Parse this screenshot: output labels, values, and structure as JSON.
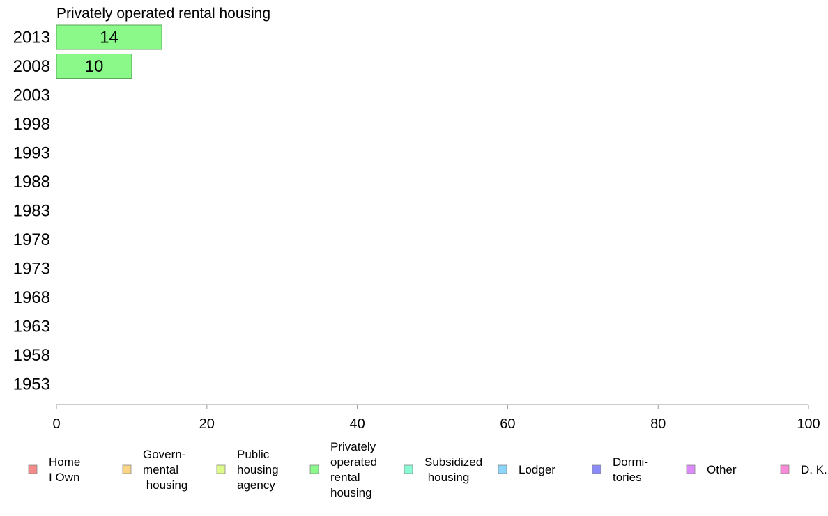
{
  "chart_data": {
    "type": "bar",
    "orientation": "horizontal",
    "stacked": true,
    "title": "Privately operated rental housing",
    "categories": [
      "2013",
      "2008",
      "2003",
      "1998",
      "1993",
      "1988",
      "1983",
      "1978",
      "1973",
      "1968",
      "1963",
      "1958",
      "1953"
    ],
    "series": [
      {
        "name": "Home\nI Own",
        "color": "#f58a8a",
        "values": [
          null,
          null,
          null,
          null,
          null,
          null,
          null,
          null,
          null,
          null,
          null,
          null,
          null
        ]
      },
      {
        "name": "Govern-\nmental\n housing",
        "color": "#f9d585",
        "values": [
          null,
          null,
          null,
          null,
          null,
          null,
          null,
          null,
          null,
          null,
          null,
          null,
          null
        ]
      },
      {
        "name": "Public\nhousing\nagency",
        "color": "#dcf98a",
        "values": [
          null,
          null,
          null,
          null,
          null,
          null,
          null,
          null,
          null,
          null,
          null,
          null,
          null
        ]
      },
      {
        "name": "Privately\noperated\nrental\nhousing",
        "color": "#8af98a",
        "values": [
          14,
          10,
          null,
          null,
          null,
          null,
          null,
          null,
          null,
          null,
          null,
          null,
          null
        ]
      },
      {
        "name": "Subsidized\n housing",
        "color": "#8af9d5",
        "values": [
          null,
          null,
          null,
          null,
          null,
          null,
          null,
          null,
          null,
          null,
          null,
          null,
          null
        ]
      },
      {
        "name": "Lodger",
        "color": "#8ad5f9",
        "values": [
          null,
          null,
          null,
          null,
          null,
          null,
          null,
          null,
          null,
          null,
          null,
          null,
          null
        ]
      },
      {
        "name": "Dormi-\ntories",
        "color": "#8a8af9",
        "values": [
          null,
          null,
          null,
          null,
          null,
          null,
          null,
          null,
          null,
          null,
          null,
          null,
          null
        ]
      },
      {
        "name": "Other",
        "color": "#dc8af9",
        "values": [
          null,
          null,
          null,
          null,
          null,
          null,
          null,
          null,
          null,
          null,
          null,
          null,
          null
        ]
      },
      {
        "name": "D. K.",
        "color": "#f98ad5",
        "values": [
          null,
          null,
          null,
          null,
          null,
          null,
          null,
          null,
          null,
          null,
          null,
          null,
          null
        ]
      }
    ],
    "xlim": [
      0,
      100
    ],
    "xticks": [
      0,
      20,
      40,
      60,
      80,
      100
    ],
    "grid": false,
    "legend_position": "bottom"
  }
}
